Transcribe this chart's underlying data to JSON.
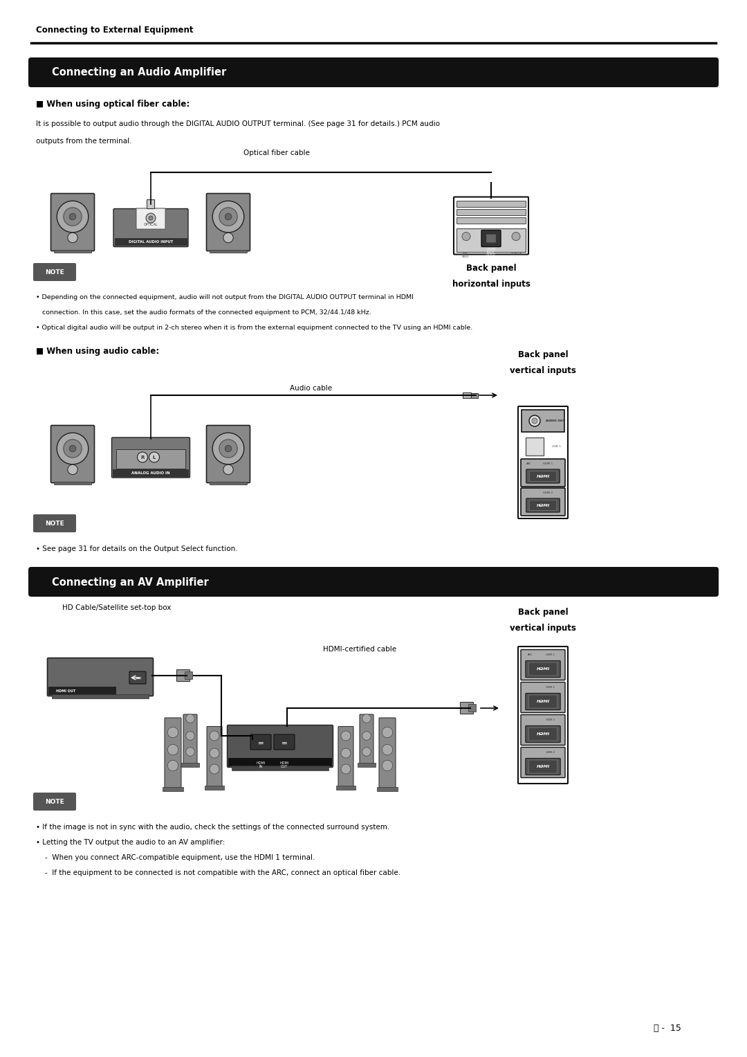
{
  "bg_color": "#ffffff",
  "page_width": 10.8,
  "page_height": 15.27,
  "header_text": "Connecting to External Equipment",
  "section1_title": "Connecting an Audio Amplifier",
  "section2_title": "Connecting an AV Amplifier",
  "subsection1_title": "■ When using optical fiber cable:",
  "subsection1_body1": "It is possible to output audio through the DIGITAL AUDIO OUTPUT terminal. (See page 31 for details.) PCM audio",
  "subsection1_body2": "outputs from the terminal.",
  "optical_cable_label": "Optical fiber cable",
  "back_panel_h_label1": "Back panel",
  "back_panel_h_label2": "horizontal inputs",
  "note_label": "NOTE",
  "note1": "• Depending on the connected equipment, audio will not output from the DIGITAL AUDIO OUTPUT terminal in HDMI",
  "note1b": "   connection. In this case, set the audio formats of the connected equipment to PCM, 32/44.1/48 kHz.",
  "note2": "• Optical digital audio will be output in 2-ch stereo when it is from the external equipment connected to the TV using an HDMI cable.",
  "subsection2_title": "■ When using audio cable:",
  "back_panel_v_label1": "Back panel",
  "back_panel_v_label2": "vertical inputs",
  "audio_cable_label": "Audio cable",
  "note3": "• See page 31 for details on the Output Select function.",
  "hd_cable_label": "HD Cable/Satellite set-top box",
  "hdmi_cable_label": "HDMI-certified cable",
  "back_panel_v2_label1": "Back panel",
  "back_panel_v2_label2": "vertical inputs",
  "note4": "• If the image is not in sync with the audio, check the settings of the connected surround system.",
  "note5": "• Letting the TV output the audio to an AV amplifier:",
  "note5a": "    -  When you connect ARC-compatible equipment, use the HDMI 1 terminal.",
  "note5b": "    -  If the equipment to be connected is not compatible with the ARC, connect an optical fiber cable.",
  "page_num": "ⓔ -  15"
}
